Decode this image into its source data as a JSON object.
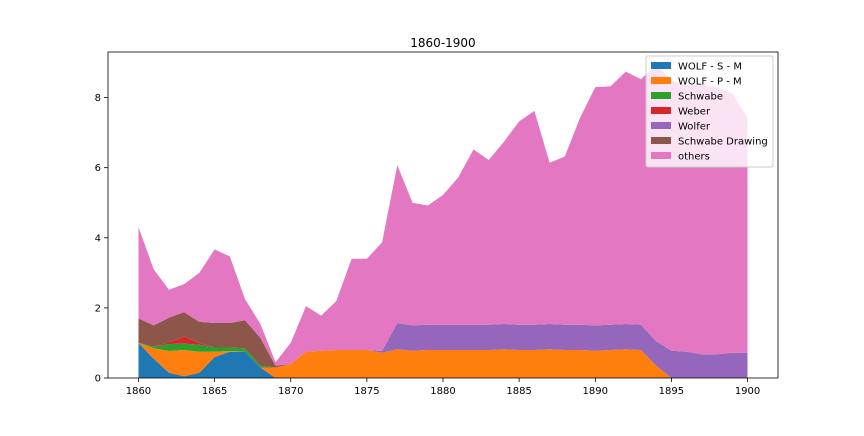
{
  "chart_data": {
    "type": "area",
    "title": "1860-1900",
    "xlabel": "",
    "ylabel": "",
    "xlim": [
      1858,
      1902
    ],
    "ylim": [
      0,
      9.3
    ],
    "xticks": [
      1860,
      1865,
      1870,
      1875,
      1880,
      1885,
      1890,
      1895,
      1900
    ],
    "yticks": [
      0,
      2,
      4,
      6,
      8
    ],
    "legend_position": "top-right",
    "grid": false,
    "x": [
      1860,
      1861,
      1862,
      1863,
      1864,
      1865,
      1866,
      1867,
      1868,
      1869,
      1870,
      1871,
      1872,
      1873,
      1874,
      1875,
      1876,
      1877,
      1878,
      1879,
      1880,
      1881,
      1882,
      1883,
      1884,
      1885,
      1886,
      1887,
      1888,
      1889,
      1890,
      1891,
      1892,
      1893,
      1894,
      1895,
      1896,
      1897,
      1898,
      1899,
      1900
    ],
    "series": [
      {
        "name": "WOLF - S - M",
        "color": "#1f77b4",
        "values": [
          1.0,
          0.55,
          0.15,
          0.05,
          0.15,
          0.6,
          0.75,
          0.75,
          0.3,
          0,
          0,
          0,
          0,
          0,
          0,
          0,
          0,
          0,
          0,
          0,
          0,
          0,
          0,
          0,
          0,
          0,
          0,
          0,
          0,
          0,
          0,
          0,
          0,
          0,
          0,
          0,
          0,
          0,
          0,
          0,
          0
        ]
      },
      {
        "name": "WOLF - P - M",
        "color": "#ff7f0e",
        "values": [
          0,
          0.3,
          0.62,
          0.75,
          0.6,
          0.15,
          0.02,
          0,
          0,
          0.3,
          0.4,
          0.75,
          0.78,
          0.8,
          0.8,
          0.8,
          0.72,
          0.82,
          0.78,
          0.8,
          0.8,
          0.8,
          0.8,
          0.8,
          0.82,
          0.8,
          0.8,
          0.82,
          0.8,
          0.8,
          0.78,
          0.8,
          0.82,
          0.8,
          0.35,
          0,
          0,
          0,
          0,
          0,
          0
        ]
      },
      {
        "name": "Schwabe",
        "color": "#2ca02c",
        "values": [
          0,
          0.05,
          0.2,
          0.18,
          0.2,
          0.12,
          0.1,
          0.1,
          0.05,
          0,
          0,
          0,
          0,
          0,
          0,
          0,
          0,
          0,
          0,
          0,
          0,
          0,
          0,
          0,
          0,
          0,
          0,
          0,
          0,
          0,
          0,
          0,
          0,
          0,
          0,
          0,
          0,
          0,
          0,
          0,
          0
        ]
      },
      {
        "name": "Weber",
        "color": "#d62728",
        "values": [
          0,
          0,
          0.05,
          0.2,
          0.05,
          0,
          0,
          0,
          0,
          0,
          0,
          0,
          0,
          0,
          0,
          0,
          0,
          0,
          0,
          0,
          0,
          0,
          0,
          0,
          0,
          0,
          0,
          0,
          0,
          0,
          0,
          0,
          0,
          0,
          0,
          0,
          0,
          0,
          0,
          0,
          0
        ]
      },
      {
        "name": "Wolfer",
        "color": "#9467bd",
        "values": [
          0,
          0,
          0,
          0,
          0,
          0,
          0,
          0,
          0,
          0,
          0,
          0,
          0,
          0,
          0,
          0,
          0.05,
          0.75,
          0.72,
          0.72,
          0.72,
          0.72,
          0.72,
          0.72,
          0.72,
          0.72,
          0.72,
          0.72,
          0.72,
          0.72,
          0.72,
          0.72,
          0.72,
          0.72,
          0.7,
          0.78,
          0.75,
          0.68,
          0.68,
          0.72,
          0.72
        ]
      },
      {
        "name": "Schwabe Drawing",
        "color": "#8c564b",
        "values": [
          0.7,
          0.6,
          0.7,
          0.7,
          0.6,
          0.7,
          0.7,
          0.8,
          0.8,
          0.05,
          0,
          0,
          0,
          0,
          0,
          0,
          0,
          0,
          0,
          0,
          0,
          0,
          0,
          0,
          0,
          0,
          0,
          0,
          0,
          0,
          0,
          0,
          0,
          0,
          0,
          0,
          0,
          0,
          0,
          0,
          0
        ]
      },
      {
        "name": "others",
        "color": "#e377c2",
        "values": [
          2.6,
          1.6,
          0.8,
          0.8,
          1.4,
          2.1,
          1.9,
          0.6,
          0.4,
          0.1,
          0.6,
          1.3,
          1.0,
          1.4,
          2.6,
          2.6,
          3.1,
          4.5,
          3.5,
          3.4,
          3.7,
          4.2,
          5.0,
          4.7,
          5.2,
          5.8,
          6.1,
          4.6,
          4.8,
          5.9,
          6.8,
          6.8,
          7.2,
          7.0,
          7.9,
          7.7,
          7.6,
          7.7,
          7.6,
          7.4,
          6.7
        ]
      }
    ]
  }
}
